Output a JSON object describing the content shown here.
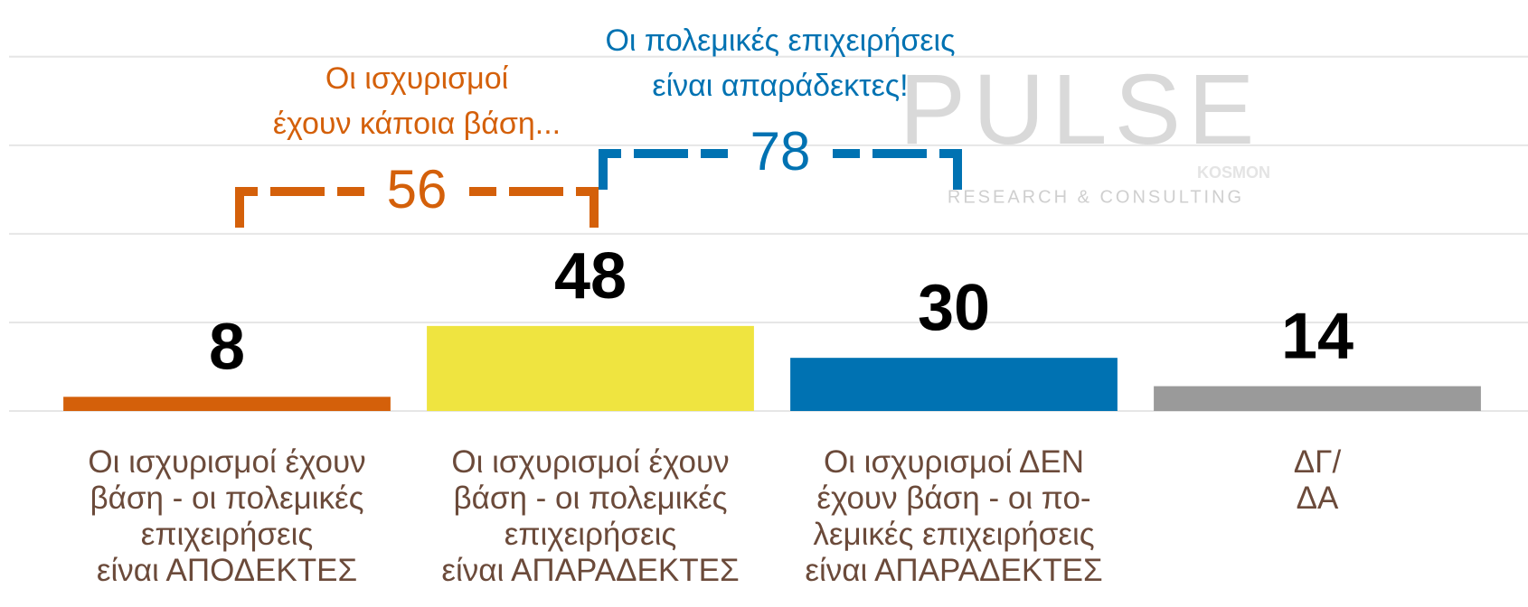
{
  "chart_data": {
    "type": "bar",
    "categories": [
      "Οι ισχυρισμοί έχουν\nβάση - οι πολεμικές\nεπιχειρήσεις\nείναι ΑΠΟΔΕΚΤΕΣ",
      "Οι ισχυρισμοί έχουν\nβάση - οι πολεμικές\nεπιχειρήσεις\nείναι ΑΠΑΡΑΔΕΚΤΕΣ",
      "Οι ισχυρισμοί ΔΕΝ\nέχουν βάση - οι πο-\nλεμικές επιχειρήσεις\nείναι ΑΠΑΡΑΔΕΚΤΕΣ",
      "ΔΓ/\nΔΑ"
    ],
    "values": [
      8,
      48,
      30,
      14
    ],
    "colors": [
      "#d4600a",
      "#efe440",
      "#0072b2",
      "#9a9a9a"
    ],
    "ylim": [
      0,
      232
    ],
    "yticks": [
      0,
      50,
      100,
      150,
      200
    ],
    "grid": true,
    "annotations": [
      {
        "text": "Οι ισχυρισμοί\nέχουν κάποια βάση...",
        "value": 56,
        "color": "#d4600a",
        "from": 0,
        "to": 1
      },
      {
        "text": "Οι πολεμικές επιχειρήσεις\nείναι απαράδεκτες!",
        "value": 78,
        "color": "#0072b2",
        "from": 1,
        "to": 2
      }
    ],
    "watermark": {
      "name": "PULSE",
      "tagline": "RESEARCH & CONSULTING",
      "partner": "KOSMON"
    }
  }
}
